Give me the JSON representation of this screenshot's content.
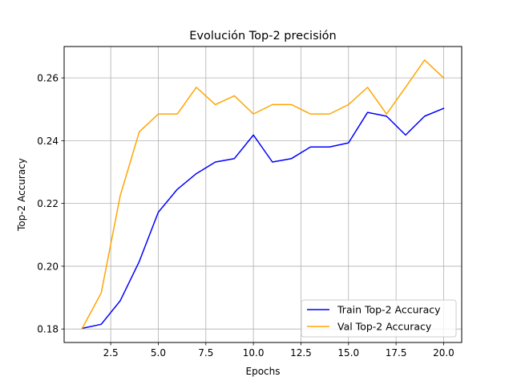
{
  "chart_data": {
    "type": "line",
    "title": "Evolución Top-2 precisión",
    "xlabel": "Epochs",
    "ylabel": "Top-2 Accuracy",
    "xlim": [
      0.05,
      20.95
    ],
    "ylim": [
      0.1757,
      0.27
    ],
    "xticks": [
      2.5,
      5.0,
      7.5,
      10.0,
      12.5,
      15.0,
      17.5,
      20.0
    ],
    "xtick_labels": [
      "2.5",
      "5.0",
      "7.5",
      "10.0",
      "12.5",
      "15.0",
      "17.5",
      "20.0"
    ],
    "yticks": [
      0.18,
      0.2,
      0.22,
      0.24,
      0.26
    ],
    "ytick_labels": [
      "0.18",
      "0.20",
      "0.22",
      "0.24",
      "0.26"
    ],
    "grid": true,
    "legend_position": "bottom-right",
    "x": [
      1,
      2,
      3,
      4,
      5,
      6,
      7,
      8,
      9,
      10,
      11,
      12,
      13,
      14,
      15,
      16,
      17,
      18,
      19,
      20
    ],
    "series": [
      {
        "name": "Train Top-2 Accuracy",
        "color": "#0000ff",
        "values": [
          0.1802,
          0.1815,
          0.189,
          0.2015,
          0.2172,
          0.2245,
          0.2295,
          0.2332,
          0.2343,
          0.2418,
          0.2332,
          0.2343,
          0.238,
          0.238,
          0.2393,
          0.249,
          0.2478,
          0.2418,
          0.2478,
          0.2503
        ]
      },
      {
        "name": "Val Top-2 Accuracy",
        "color": "#ffa500",
        "values": [
          0.1802,
          0.1915,
          0.2225,
          0.2428,
          0.2485,
          0.2485,
          0.257,
          0.2515,
          0.2543,
          0.2485,
          0.2515,
          0.2515,
          0.2485,
          0.2485,
          0.2515,
          0.257,
          0.2485,
          0.257,
          0.2657,
          0.26
        ]
      }
    ]
  }
}
